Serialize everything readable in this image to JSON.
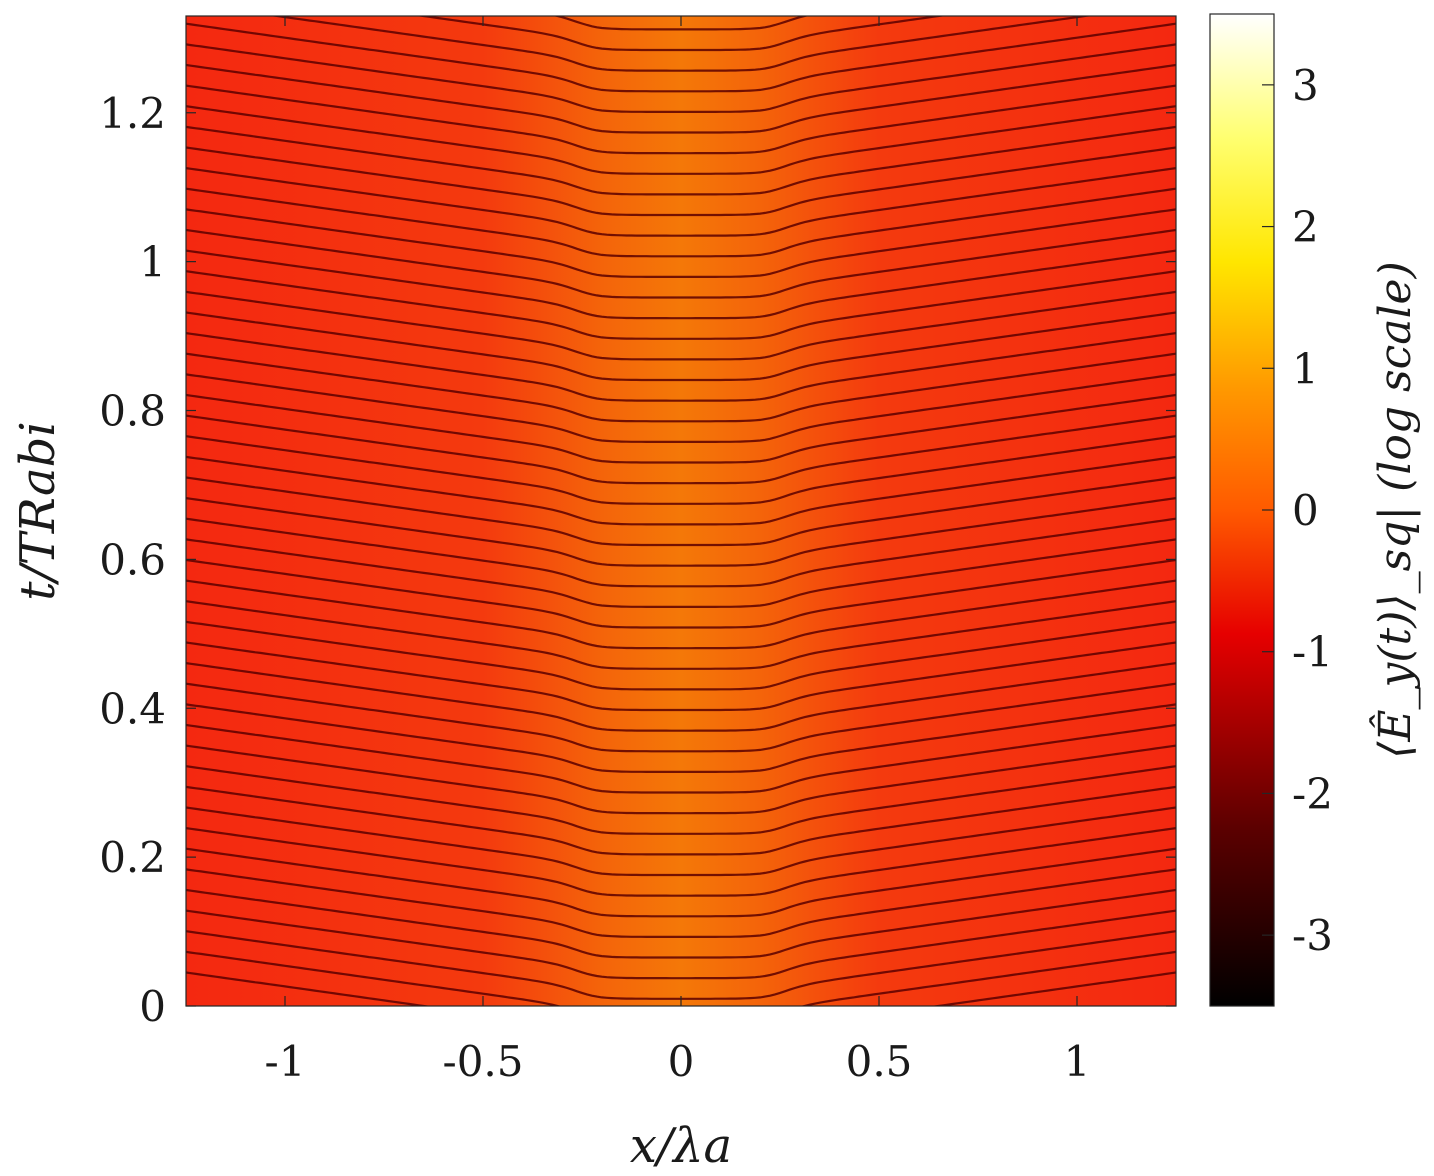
{
  "chart_data": {
    "type": "heatmap",
    "xlabel": "x/λa",
    "ylabel": "t/TRabi",
    "colorbar_label": "⟨Ê_y(t)⟩_sq| (log scale)",
    "xlim": [
      -1.25,
      1.25
    ],
    "ylim": [
      0,
      1.33
    ],
    "xticks": [
      -1,
      -0.5,
      0,
      0.5,
      1
    ],
    "xtick_labels": [
      "-1",
      "-0.5",
      "0",
      "0.5",
      "1"
    ],
    "yticks": [
      0,
      0.2,
      0.4,
      0.6,
      0.8,
      1,
      1.2
    ],
    "ytick_labels": [
      "0",
      "0.2",
      "0.4",
      "0.6",
      "0.8",
      "1",
      "1.2"
    ],
    "colorbar": {
      "colormap": "hot",
      "clim": [
        -3.5,
        3.5
      ],
      "ticks": [
        3,
        2,
        1,
        0,
        -1,
        -2,
        -3
      ],
      "tick_labels": [
        "3",
        "2",
        "1",
        "0",
        "-1",
        "-2",
        "-3"
      ]
    },
    "field": {
      "background_log_value": -0.55,
      "center_log_value": 0.15,
      "center_halfwidth_x": 0.25,
      "fringe_count": 48,
      "outer_fringe_slope_per_lambda": 0.075
    },
    "grid": false,
    "colors": {
      "dark_fringe": "#5a0000",
      "field_outer": "#f42810",
      "field_center": "#f47808"
    }
  }
}
